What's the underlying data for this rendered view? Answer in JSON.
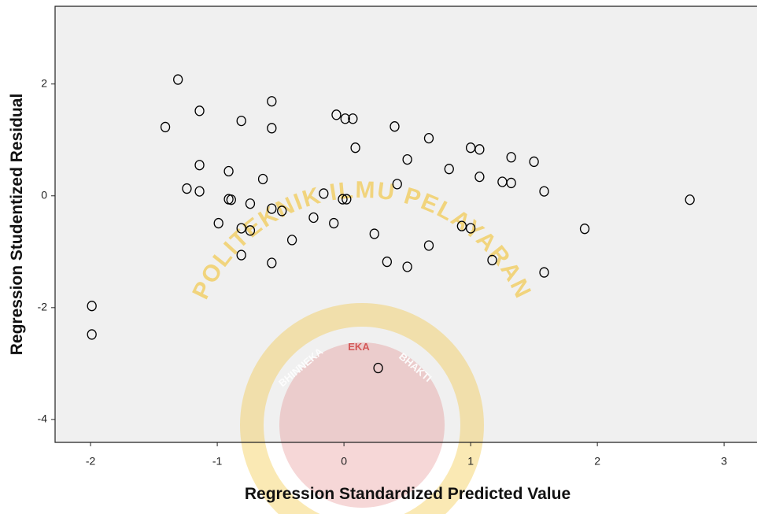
{
  "chart_data": {
    "type": "scatter",
    "xlabel": "Regression Standardized Predicted Value",
    "ylabel": "Regression Studentized Residual",
    "xlim": [
      -2.28,
      3.26
    ],
    "ylim": [
      -4.41,
      3.39
    ],
    "xticks": [
      -2,
      -1,
      0,
      1,
      2,
      3
    ],
    "yticks": [
      2,
      0,
      -2,
      -4
    ],
    "color": "#000000",
    "background": "#f0f0f0",
    "x": [
      -1.99,
      -1.99,
      -1.41,
      -1.31,
      -1.14,
      -1.14,
      -1.24,
      -1.14,
      -0.99,
      -0.91,
      -0.91,
      -0.89,
      -0.81,
      -0.81,
      -0.81,
      -0.74,
      -0.74,
      -0.64,
      -0.57,
      -0.57,
      -0.57,
      -0.49,
      -0.57,
      -0.41,
      -0.24,
      -0.16,
      -0.08,
      -0.06,
      -0.01,
      0.02,
      0.01,
      0.07,
      0.09,
      0.24,
      0.27,
      0.34,
      0.4,
      0.42,
      0.5,
      0.5,
      0.67,
      0.67,
      0.83,
      0.93,
      1.0,
      1.0,
      1.07,
      1.07,
      1.17,
      1.25,
      1.32,
      1.32,
      1.5,
      1.58,
      1.58,
      1.9,
      2.73
    ],
    "values": [
      -1.97,
      -2.48,
      1.23,
      2.08,
      1.52,
      0.55,
      0.13,
      0.08,
      -0.49,
      0.44,
      -0.06,
      -0.07,
      1.34,
      -0.58,
      -1.06,
      -0.14,
      -0.62,
      0.3,
      1.69,
      1.21,
      -0.23,
      -0.27,
      -1.2,
      -0.79,
      -0.39,
      0.04,
      -0.49,
      1.45,
      -0.06,
      -0.06,
      1.38,
      1.38,
      0.86,
      -0.68,
      -3.08,
      -1.18,
      1.24,
      0.21,
      0.65,
      -1.27,
      1.03,
      -0.89,
      0.48,
      -0.54,
      0.86,
      -0.58,
      0.83,
      0.34,
      -1.15,
      0.25,
      0.23,
      0.69,
      0.61,
      0.08,
      -1.37,
      -0.59,
      -0.07
    ]
  },
  "watermark": {
    "arc_text": "POLITEKNIK ILMU PELAYARAN",
    "inner": [
      "BHINNEKA",
      "EKA",
      "BHAKTI"
    ]
  }
}
